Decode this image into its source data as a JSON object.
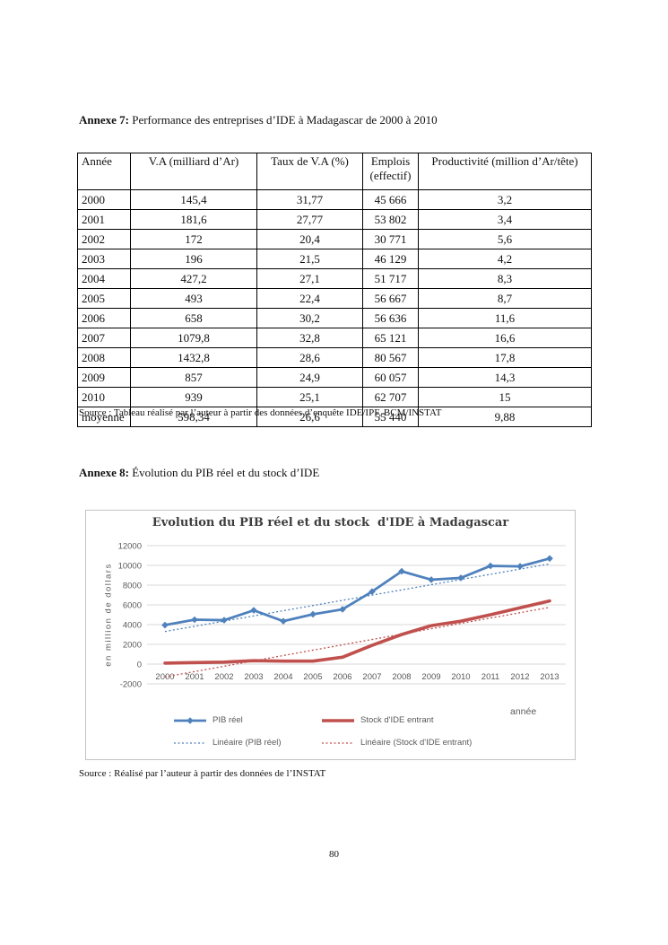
{
  "page": {
    "number": "80"
  },
  "annexe7": {
    "heading_label": "Annexe 7:",
    "heading_text": " Performance des entreprises d’IDE à Madagascar de 2000 à 2010",
    "table": {
      "headers": [
        "Année",
        "V.A (milliard d’Ar)",
        "Taux de V.A (%)",
        "Emplois (effectif)",
        "Productivité (million d’Ar/tête)"
      ],
      "rows": [
        [
          "2000",
          "145,4",
          "31,77",
          "45 666",
          "3,2"
        ],
        [
          "2001",
          "181,6",
          "27,77",
          "53 802",
          "3,4"
        ],
        [
          "2002",
          "172",
          "20,4",
          "30 771",
          "5,6"
        ],
        [
          "2003",
          "196",
          "21,5",
          "46 129",
          "4,2"
        ],
        [
          "2004",
          "427,2",
          "27,1",
          "51 717",
          "8,3"
        ],
        [
          "2005",
          "493",
          "22,4",
          "56 667",
          "8,7"
        ],
        [
          "2006",
          "658",
          "30,2",
          "56 636",
          "11,6"
        ],
        [
          "2007",
          "1079,8",
          "32,8",
          "65 121",
          "16,6"
        ],
        [
          "2008",
          "1432,8",
          "28,6",
          "80 567",
          "17,8"
        ],
        [
          "2009",
          "857",
          "24,9",
          "60 057",
          "14,3"
        ],
        [
          "2010",
          "939",
          "25,1",
          "62 707",
          "15"
        ],
        [
          "moyenne",
          "598,34",
          "26,6",
          "55 440",
          "9,88"
        ]
      ]
    },
    "source": "Source : Tableau réalisé par l’auteur à partir des données d’enquête IDE/IPF, BCM/INSTAT"
  },
  "annexe8": {
    "heading_label": "Annexe 8:",
    "heading_text": " Évolution du PIB réel et du stock d’IDE",
    "source": "Source : Réalisé par l’auteur à partir des données de l’INSTAT"
  },
  "chart_data": {
    "type": "line",
    "title": "Evolution du PIB réel et du stock  d'IDE à Madagascar",
    "ylabel": "en million de dollars",
    "xlabel": "année",
    "x": [
      2000,
      2001,
      2002,
      2003,
      2004,
      2005,
      2006,
      2007,
      2008,
      2009,
      2010,
      2011,
      2012,
      2013
    ],
    "ylim": [
      -2000,
      12000
    ],
    "ytick_step": 2000,
    "grid": true,
    "legend_position": "bottom",
    "colors": {
      "pib_blue": "#4F81BD",
      "ide_red": "#C0504D",
      "gridline": "#D9D9D9",
      "axis_text": "#595959"
    },
    "series": [
      {
        "name": "PIB réel",
        "color": "#4F81BD",
        "style": "solid-diamond",
        "values": [
          3950,
          4500,
          4450,
          5450,
          4350,
          5050,
          5550,
          7350,
          9400,
          8550,
          8730,
          9950,
          9900,
          10700
        ]
      },
      {
        "name": "Stock d'IDE entrant",
        "color": "#C0504D",
        "style": "solid",
        "values": [
          100,
          150,
          200,
          350,
          300,
          300,
          700,
          1900,
          3000,
          3900,
          4350,
          5000,
          5700,
          6400
        ]
      },
      {
        "name": "Linéaire (PIB réel)",
        "color": "#4F81BD",
        "style": "dotted",
        "trend_from": 3300,
        "trend_to": 10150
      },
      {
        "name": "Linéaire (Stock d'IDE entrant)",
        "color": "#C0504D",
        "style": "dotted",
        "trend_from": -1300,
        "trend_to": 5750
      }
    ]
  }
}
